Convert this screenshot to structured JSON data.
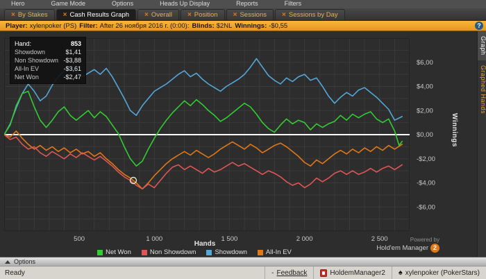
{
  "menu": {
    "items": [
      "Hero",
      "Game Mode",
      "Options",
      "Heads Up Display",
      "Reports",
      "Filters"
    ]
  },
  "tabs": {
    "close_glyph": "×",
    "items": [
      {
        "label": "By Stakes",
        "active": false
      },
      {
        "label": "Cash Results Graph",
        "active": true
      },
      {
        "label": "Overall",
        "active": false
      },
      {
        "label": "Position",
        "active": false
      },
      {
        "label": "Sessions",
        "active": false
      },
      {
        "label": "Sessions by Day",
        "active": false
      }
    ]
  },
  "info_bar": {
    "player_label": "Player:",
    "player_value": "xylenpoker (PS)",
    "filter_label": "Filter:",
    "filter_value": "After 26 ноября 2016 г. (0:00):",
    "blinds_label": "Blinds:",
    "blinds_value": "$2NL",
    "winnings_label": "Winnings:",
    "winnings_value": "-$0,55",
    "help_glyph": "?"
  },
  "tooltip": {
    "hand_label": "Hand:",
    "hand_value": "853",
    "rows": [
      {
        "label": "Showdown",
        "value": "$1,41"
      },
      {
        "label": "Non Showdown",
        "value": "-$3,88"
      },
      {
        "label": "All-In EV",
        "value": "-$3,61"
      },
      {
        "label": "Net Won",
        "value": "-$2,47"
      }
    ]
  },
  "side_tabs": [
    {
      "label": "Graph",
      "active": true
    },
    {
      "label": "Graphed Hands",
      "active": false
    }
  ],
  "options_bar": {
    "label": "Options"
  },
  "status_bar": {
    "ready": "Ready",
    "feedback_prefix": "-",
    "feedback": "Feedback",
    "app_name": "HoldemManager2",
    "spade_glyph": "♠",
    "account": "xylenpoker (PokerStars)"
  },
  "powered_by": {
    "line1": "Powered by",
    "brand": "Hold'em Manager",
    "badge": "2"
  },
  "chart_data": {
    "type": "line",
    "title": "Cash Results Graph",
    "xlabel": "Hands",
    "ylabel": "Winnings",
    "xlim": [
      0,
      2700
    ],
    "ylim": [
      -8,
      8
    ],
    "x_ticks": [
      {
        "v": 500,
        "label": "500"
      },
      {
        "v": 1000,
        "label": "1 000"
      },
      {
        "v": 1500,
        "label": "1 500"
      },
      {
        "v": 2000,
        "label": "2 000"
      },
      {
        "v": 2500,
        "label": "2 500"
      }
    ],
    "y_ticks": [
      {
        "v": 6,
        "label": "$6,00"
      },
      {
        "v": 4,
        "label": "$4,00"
      },
      {
        "v": 2,
        "label": "$2,00"
      },
      {
        "v": 0,
        "label": "$0,00"
      },
      {
        "v": -2,
        "label": "-$2,00"
      },
      {
        "v": -4,
        "label": "-$4,00"
      },
      {
        "v": -6,
        "label": "-$6,00"
      }
    ],
    "grid": {
      "x_step": 100,
      "y_step": 1,
      "color": "#3a3a3a"
    },
    "zero_line_color": "#ffffff",
    "marker": {
      "x": 860,
      "y": -3.8
    },
    "legend_position": "bottom",
    "series": [
      {
        "name": "All-In EV",
        "color": "#e07818",
        "points": [
          [
            0,
            0
          ],
          [
            40,
            -0.2
          ],
          [
            80,
            0.3
          ],
          [
            120,
            -0.3
          ],
          [
            160,
            -0.8
          ],
          [
            200,
            -1.2
          ],
          [
            240,
            -0.9
          ],
          [
            280,
            -1.3
          ],
          [
            320,
            -1.0
          ],
          [
            360,
            -1.4
          ],
          [
            400,
            -1.1
          ],
          [
            440,
            -1.5
          ],
          [
            480,
            -1.2
          ],
          [
            520,
            -1.6
          ],
          [
            560,
            -1.4
          ],
          [
            600,
            -1.8
          ],
          [
            640,
            -1.5
          ],
          [
            680,
            -2.0
          ],
          [
            720,
            -2.4
          ],
          [
            760,
            -2.9
          ],
          [
            800,
            -3.3
          ],
          [
            840,
            -3.6
          ],
          [
            880,
            -4.0
          ],
          [
            920,
            -4.5
          ],
          [
            960,
            -4.0
          ],
          [
            1000,
            -3.4
          ],
          [
            1040,
            -2.9
          ],
          [
            1080,
            -2.4
          ],
          [
            1120,
            -2.0
          ],
          [
            1160,
            -1.7
          ],
          [
            1200,
            -1.4
          ],
          [
            1240,
            -1.7
          ],
          [
            1280,
            -1.3
          ],
          [
            1320,
            -1.6
          ],
          [
            1360,
            -1.9
          ],
          [
            1400,
            -1.6
          ],
          [
            1440,
            -1.2
          ],
          [
            1480,
            -0.9
          ],
          [
            1520,
            -0.6
          ],
          [
            1560,
            -0.9
          ],
          [
            1600,
            -1.2
          ],
          [
            1640,
            -0.8
          ],
          [
            1680,
            -1.1
          ],
          [
            1720,
            -1.5
          ],
          [
            1760,
            -1.2
          ],
          [
            1800,
            -0.9
          ],
          [
            1840,
            -0.7
          ],
          [
            1880,
            -1.0
          ],
          [
            1920,
            -1.4
          ],
          [
            1960,
            -1.8
          ],
          [
            2000,
            -2.3
          ],
          [
            2040,
            -2.6
          ],
          [
            2080,
            -2.1
          ],
          [
            2120,
            -2.4
          ],
          [
            2160,
            -2.0
          ],
          [
            2200,
            -1.6
          ],
          [
            2240,
            -1.3
          ],
          [
            2280,
            -1.6
          ],
          [
            2320,
            -1.2
          ],
          [
            2360,
            -1.5
          ],
          [
            2400,
            -1.1
          ],
          [
            2440,
            -1.4
          ],
          [
            2480,
            -1.0
          ],
          [
            2520,
            -1.3
          ],
          [
            2560,
            -0.9
          ],
          [
            2600,
            -1.2
          ],
          [
            2650,
            -0.8
          ]
        ]
      },
      {
        "name": "Non Showdown",
        "color": "#e05555",
        "points": [
          [
            0,
            0
          ],
          [
            40,
            -0.4
          ],
          [
            80,
            -0.2
          ],
          [
            120,
            -0.8
          ],
          [
            160,
            -1.2
          ],
          [
            200,
            -1.0
          ],
          [
            240,
            -1.5
          ],
          [
            280,
            -1.8
          ],
          [
            320,
            -1.4
          ],
          [
            360,
            -1.7
          ],
          [
            400,
            -2.0
          ],
          [
            440,
            -1.6
          ],
          [
            480,
            -1.9
          ],
          [
            520,
            -1.5
          ],
          [
            560,
            -1.8
          ],
          [
            600,
            -2.1
          ],
          [
            640,
            -1.8
          ],
          [
            680,
            -2.2
          ],
          [
            720,
            -2.6
          ],
          [
            760,
            -3.1
          ],
          [
            800,
            -3.5
          ],
          [
            840,
            -3.8
          ],
          [
            880,
            -4.2
          ],
          [
            920,
            -4.5
          ],
          [
            960,
            -4.1
          ],
          [
            1000,
            -4.4
          ],
          [
            1040,
            -3.8
          ],
          [
            1080,
            -3.2
          ],
          [
            1120,
            -2.7
          ],
          [
            1160,
            -2.5
          ],
          [
            1200,
            -2.9
          ],
          [
            1240,
            -2.6
          ],
          [
            1280,
            -2.9
          ],
          [
            1320,
            -3.2
          ],
          [
            1360,
            -2.8
          ],
          [
            1400,
            -3.1
          ],
          [
            1440,
            -2.9
          ],
          [
            1480,
            -2.6
          ],
          [
            1520,
            -2.3
          ],
          [
            1560,
            -2.6
          ],
          [
            1600,
            -2.4
          ],
          [
            1640,
            -2.7
          ],
          [
            1680,
            -3.0
          ],
          [
            1720,
            -3.3
          ],
          [
            1760,
            -3.0
          ],
          [
            1800,
            -3.2
          ],
          [
            1840,
            -3.5
          ],
          [
            1880,
            -3.9
          ],
          [
            1920,
            -4.2
          ],
          [
            1960,
            -4.0
          ],
          [
            2000,
            -4.4
          ],
          [
            2040,
            -4.1
          ],
          [
            2080,
            -3.6
          ],
          [
            2120,
            -3.9
          ],
          [
            2160,
            -3.6
          ],
          [
            2200,
            -3.2
          ],
          [
            2240,
            -3.0
          ],
          [
            2280,
            -3.3
          ],
          [
            2320,
            -3.0
          ],
          [
            2360,
            -3.3
          ],
          [
            2400,
            -3.1
          ],
          [
            2440,
            -2.8
          ],
          [
            2480,
            -3.1
          ],
          [
            2520,
            -2.8
          ],
          [
            2560,
            -2.6
          ],
          [
            2600,
            -2.9
          ],
          [
            2650,
            -2.5
          ]
        ]
      },
      {
        "name": "Showdown",
        "color": "#54a7d8",
        "points": [
          [
            0,
            0
          ],
          [
            40,
            0.9
          ],
          [
            80,
            2.2
          ],
          [
            120,
            3.4
          ],
          [
            160,
            4.2
          ],
          [
            200,
            3.6
          ],
          [
            240,
            2.8
          ],
          [
            280,
            3.2
          ],
          [
            320,
            4.1
          ],
          [
            360,
            4.8
          ],
          [
            400,
            5.3
          ],
          [
            440,
            5.6
          ],
          [
            480,
            5.2
          ],
          [
            520,
            4.8
          ],
          [
            560,
            5.1
          ],
          [
            600,
            5.4
          ],
          [
            640,
            5.0
          ],
          [
            680,
            5.5
          ],
          [
            720,
            4.8
          ],
          [
            760,
            3.9
          ],
          [
            800,
            3.0
          ],
          [
            840,
            2.0
          ],
          [
            880,
            1.6
          ],
          [
            920,
            2.4
          ],
          [
            960,
            3.0
          ],
          [
            1000,
            3.6
          ],
          [
            1040,
            3.9
          ],
          [
            1080,
            4.2
          ],
          [
            1120,
            4.6
          ],
          [
            1160,
            5.0
          ],
          [
            1200,
            5.3
          ],
          [
            1240,
            4.8
          ],
          [
            1280,
            5.1
          ],
          [
            1320,
            4.6
          ],
          [
            1360,
            4.2
          ],
          [
            1400,
            3.9
          ],
          [
            1440,
            3.6
          ],
          [
            1480,
            4.0
          ],
          [
            1520,
            4.3
          ],
          [
            1560,
            4.6
          ],
          [
            1600,
            5.0
          ],
          [
            1640,
            5.6
          ],
          [
            1680,
            6.3
          ],
          [
            1720,
            5.6
          ],
          [
            1760,
            4.9
          ],
          [
            1800,
            4.5
          ],
          [
            1840,
            4.2
          ],
          [
            1880,
            4.7
          ],
          [
            1920,
            4.4
          ],
          [
            1960,
            4.8
          ],
          [
            2000,
            5.0
          ],
          [
            2040,
            4.5
          ],
          [
            2080,
            4.7
          ],
          [
            2120,
            4.0
          ],
          [
            2160,
            3.2
          ],
          [
            2200,
            2.6
          ],
          [
            2240,
            3.1
          ],
          [
            2280,
            3.5
          ],
          [
            2320,
            3.2
          ],
          [
            2360,
            3.7
          ],
          [
            2400,
            3.9
          ],
          [
            2440,
            3.5
          ],
          [
            2480,
            3.1
          ],
          [
            2520,
            2.6
          ],
          [
            2560,
            2.1
          ],
          [
            2600,
            1.2
          ],
          [
            2650,
            1.5
          ]
        ]
      },
      {
        "name": "Net Won",
        "color": "#33cc33",
        "points": [
          [
            0,
            0
          ],
          [
            40,
            0.8
          ],
          [
            80,
            2.4
          ],
          [
            120,
            3.4
          ],
          [
            160,
            3.6
          ],
          [
            200,
            2.3
          ],
          [
            240,
            1.2
          ],
          [
            280,
            0.6
          ],
          [
            320,
            1.2
          ],
          [
            360,
            1.9
          ],
          [
            400,
            2.3
          ],
          [
            440,
            1.6
          ],
          [
            480,
            1.2
          ],
          [
            520,
            1.6
          ],
          [
            560,
            2.0
          ],
          [
            600,
            1.4
          ],
          [
            640,
            1.9
          ],
          [
            680,
            1.5
          ],
          [
            720,
            0.8
          ],
          [
            760,
            0.1
          ],
          [
            800,
            -1.0
          ],
          [
            840,
            -2.0
          ],
          [
            880,
            -2.6
          ],
          [
            920,
            -2.2
          ],
          [
            960,
            -1.2
          ],
          [
            1000,
            -0.3
          ],
          [
            1040,
            0.5
          ],
          [
            1080,
            1.2
          ],
          [
            1120,
            1.8
          ],
          [
            1160,
            2.3
          ],
          [
            1200,
            2.8
          ],
          [
            1240,
            2.4
          ],
          [
            1280,
            2.9
          ],
          [
            1320,
            2.5
          ],
          [
            1360,
            2.0
          ],
          [
            1400,
            1.6
          ],
          [
            1440,
            1.1
          ],
          [
            1480,
            1.4
          ],
          [
            1520,
            1.8
          ],
          [
            1560,
            2.2
          ],
          [
            1600,
            2.6
          ],
          [
            1640,
            2.3
          ],
          [
            1680,
            1.7
          ],
          [
            1720,
            1.0
          ],
          [
            1760,
            0.5
          ],
          [
            1800,
            0.2
          ],
          [
            1840,
            0.8
          ],
          [
            1880,
            1.3
          ],
          [
            1920,
            0.9
          ],
          [
            1960,
            1.2
          ],
          [
            2000,
            1.0
          ],
          [
            2040,
            0.4
          ],
          [
            2080,
            0.9
          ],
          [
            2120,
            0.6
          ],
          [
            2160,
            0.9
          ],
          [
            2200,
            1.1
          ],
          [
            2240,
            1.6
          ],
          [
            2280,
            1.2
          ],
          [
            2320,
            1.7
          ],
          [
            2360,
            1.4
          ],
          [
            2400,
            1.7
          ],
          [
            2440,
            1.9
          ],
          [
            2480,
            1.3
          ],
          [
            2520,
            1.0
          ],
          [
            2560,
            1.3
          ],
          [
            2600,
            0.3
          ],
          [
            2630,
            -0.9
          ],
          [
            2650,
            -0.55
          ]
        ]
      }
    ],
    "legend_order": [
      3,
      1,
      2,
      0
    ]
  }
}
